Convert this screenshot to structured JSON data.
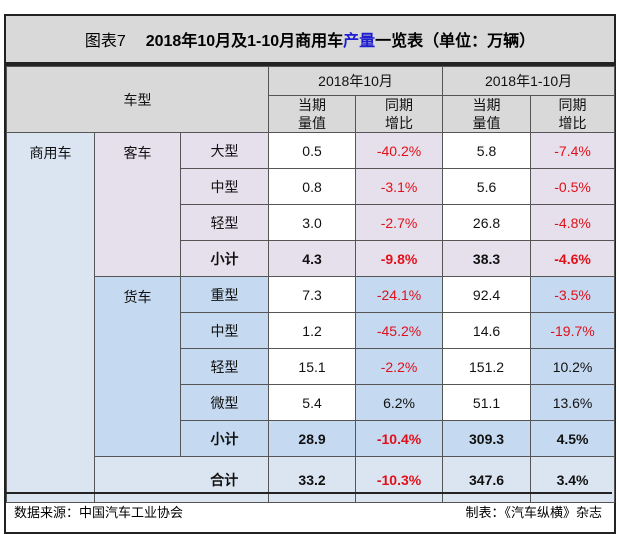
{
  "title": {
    "prefix": "图表7",
    "main_a": "2018年10月及1-10月商用车",
    "main_hl": "产量",
    "main_b": "一览表（单位：万辆）"
  },
  "header": {
    "vehicle_type": "车型",
    "period1": "2018年10月",
    "period2": "2018年1-10月",
    "cur_val": "当期",
    "cur_val2": "量值",
    "yoy": "同期",
    "yoy2": "增比"
  },
  "category": "商用车",
  "groups": [
    {
      "name": "客车",
      "rows": [
        {
          "type": "大型",
          "oct": "0.5",
          "oct_yoy": "-40.2%",
          "ytd": "5.8",
          "ytd_yoy": "-7.4%"
        },
        {
          "type": "中型",
          "oct": "0.8",
          "oct_yoy": "-3.1%",
          "ytd": "5.6",
          "ytd_yoy": "-0.5%"
        },
        {
          "type": "轻型",
          "oct": "3.0",
          "oct_yoy": "-2.7%",
          "ytd": "26.8",
          "ytd_yoy": "-4.8%"
        }
      ],
      "subtotal": {
        "label": "小计",
        "oct": "4.3",
        "oct_yoy": "-9.8%",
        "ytd": "38.3",
        "ytd_yoy": "-4.6%"
      }
    },
    {
      "name": "货车",
      "rows": [
        {
          "type": "重型",
          "oct": "7.3",
          "oct_yoy": "-24.1%",
          "ytd": "92.4",
          "ytd_yoy": "-3.5%"
        },
        {
          "type": "中型",
          "oct": "1.2",
          "oct_yoy": "-45.2%",
          "ytd": "14.6",
          "ytd_yoy": "-19.7%"
        },
        {
          "type": "轻型",
          "oct": "15.1",
          "oct_yoy": "-2.2%",
          "ytd": "151.2",
          "ytd_yoy": "10.2%"
        },
        {
          "type": "微型",
          "oct": "5.4",
          "oct_yoy": "6.2%",
          "ytd": "51.1",
          "ytd_yoy": "13.6%"
        }
      ],
      "subtotal": {
        "label": "小计",
        "oct": "28.9",
        "oct_yoy": "-10.4%",
        "ytd": "309.3",
        "ytd_yoy": "4.5%"
      }
    }
  ],
  "total": {
    "label": "合计",
    "oct": "33.2",
    "oct_yoy": "-10.3%",
    "ytd": "347.6",
    "ytd_yoy": "3.4%"
  },
  "footer": {
    "source": "数据来源：中国汽车工业协会",
    "credit": "制表：《汽车纵横》杂志"
  },
  "colors": {
    "negative": "#e0101a",
    "highlight": "#1f1fd0",
    "bus_bg": "#e6e0ec",
    "truck_bg": "#c5d9f1",
    "category_bg": "#dbe5f1",
    "header_bg": "#d9d9d9"
  }
}
